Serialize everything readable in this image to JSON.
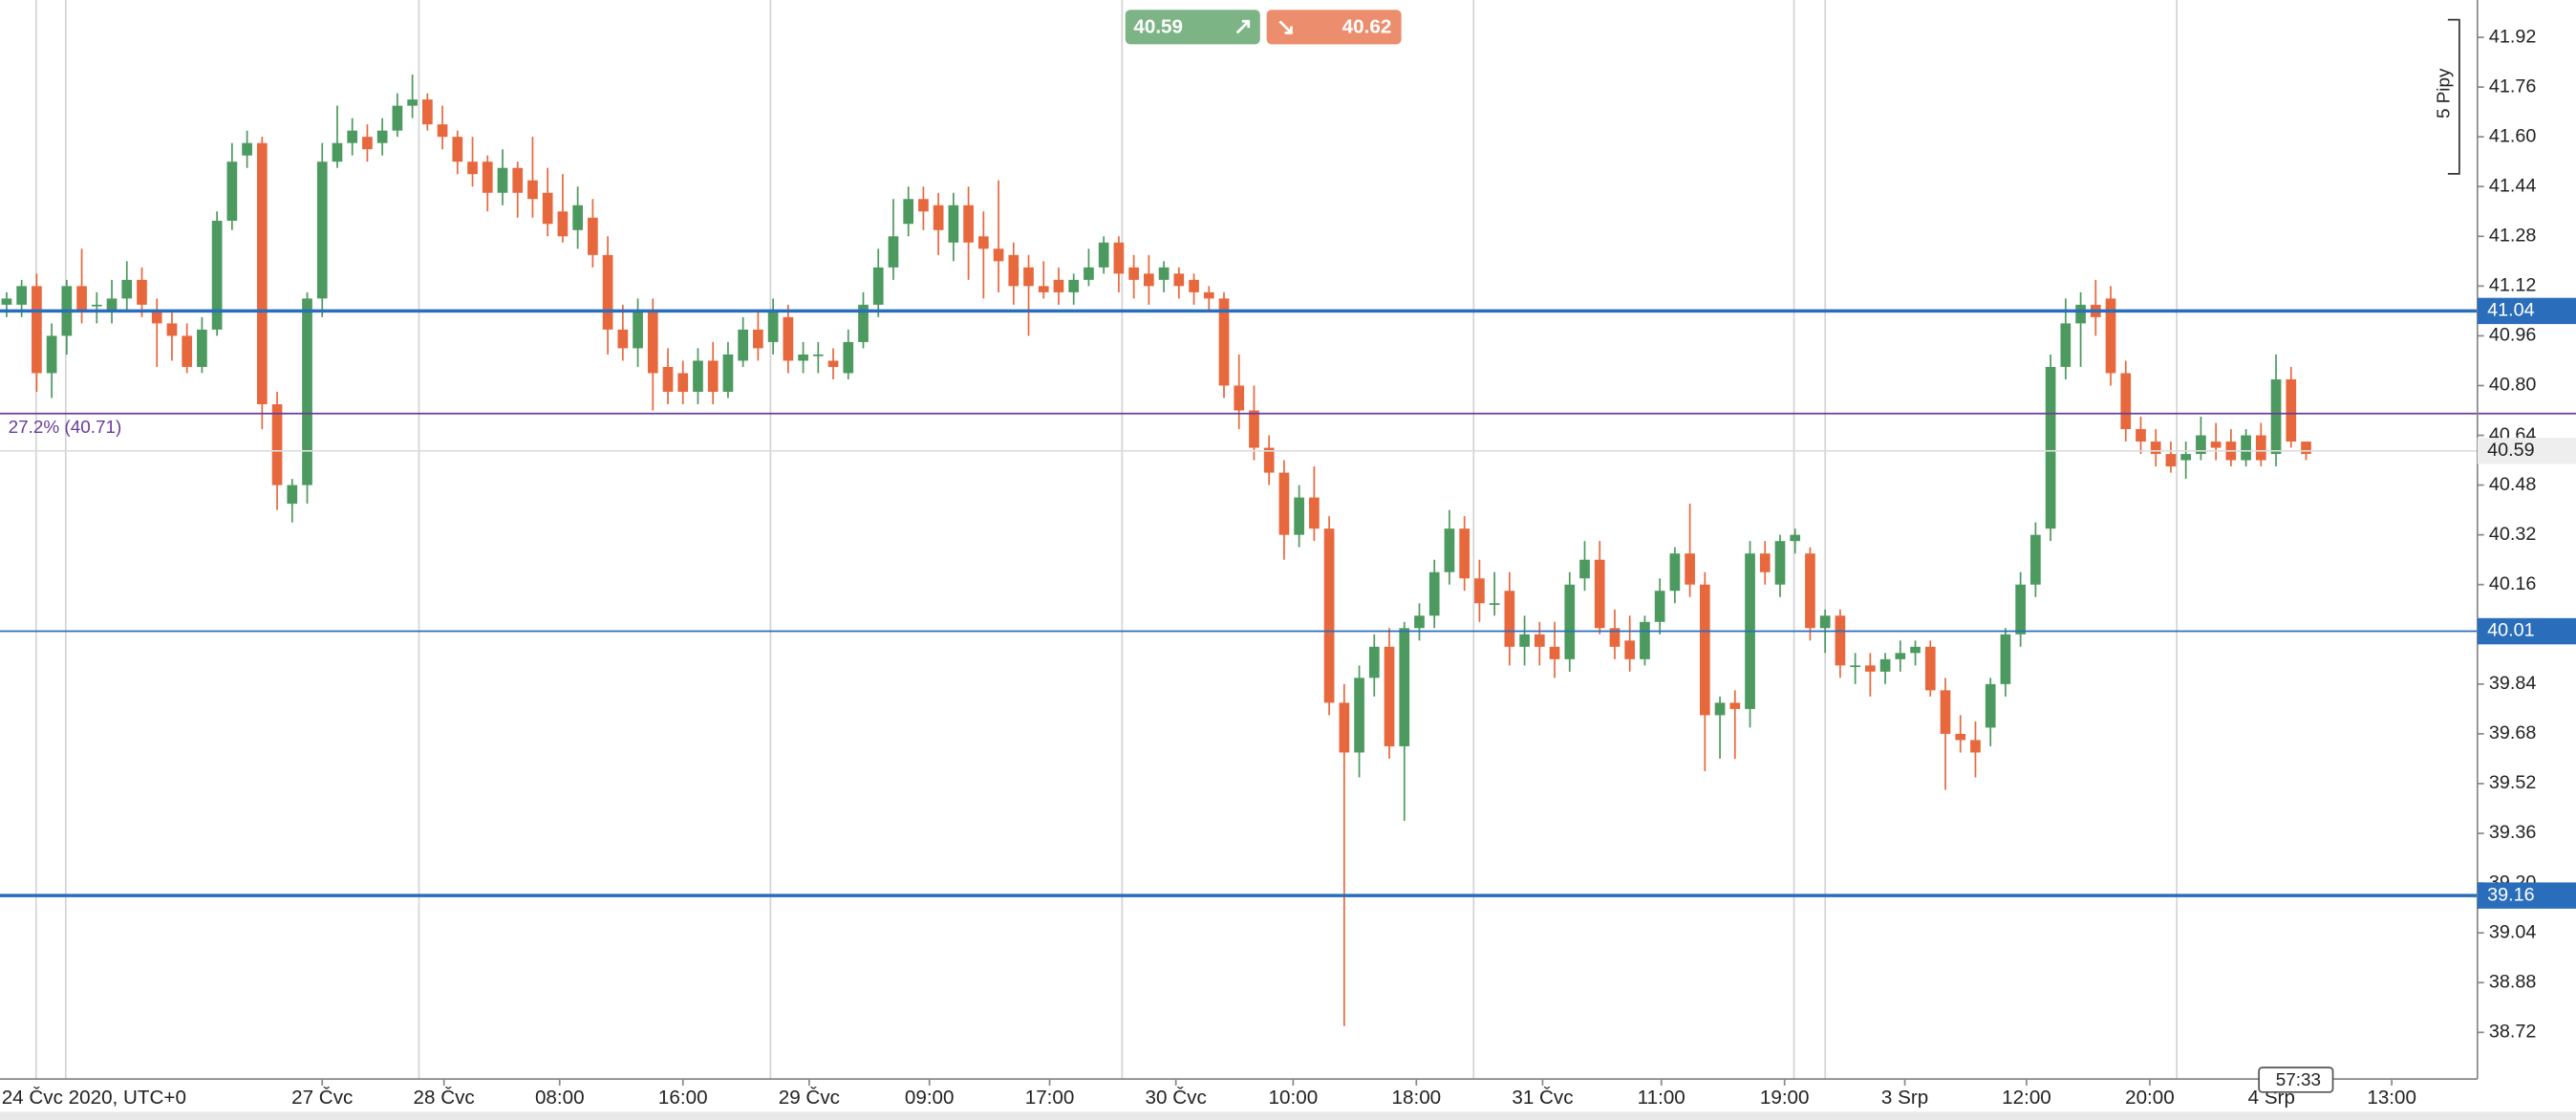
{
  "chart_data": {
    "type": "candlestick",
    "up_color": "#4c9a5f",
    "down_color": "#e8683e",
    "xlim": [
      -0.44,
      164.4
    ],
    "ylim": [
      38.57,
      42.04
    ],
    "axis_start_label": "24 Čvc 2020, UTC+0",
    "xticks": [
      {
        "value": 21.0,
        "label": "27 Čvc"
      },
      {
        "value": 29.1,
        "label": "28 Čvc"
      },
      {
        "value": 36.8,
        "label": "08:00"
      },
      {
        "value": 45.0,
        "label": "16:00"
      },
      {
        "value": 53.4,
        "label": "29 Čvc"
      },
      {
        "value": 61.4,
        "label": "09:00"
      },
      {
        "value": 69.4,
        "label": "17:00"
      },
      {
        "value": 77.8,
        "label": "30 Čvc"
      },
      {
        "value": 85.6,
        "label": "10:00"
      },
      {
        "value": 93.8,
        "label": "18:00"
      },
      {
        "value": 102.2,
        "label": "31 Čvc"
      },
      {
        "value": 110.1,
        "label": "11:00"
      },
      {
        "value": 118.3,
        "label": "19:00"
      },
      {
        "value": 126.3,
        "label": "3 Srp"
      },
      {
        "value": 134.4,
        "label": "12:00"
      },
      {
        "value": 142.6,
        "label": "20:00"
      },
      {
        "value": 150.7,
        "label": "4 Srp"
      },
      {
        "value": 158.7,
        "label": "13:00"
      }
    ],
    "yticks": [
      41.92,
      41.76,
      {
        "value": 41.6,
        "label": "41.60"
      },
      41.44,
      41.28,
      41.12,
      40.96,
      {
        "value": 40.8,
        "label": "40.80"
      },
      40.64,
      40.48,
      40.32,
      40.16,
      {
        "value": 40.0,
        "label": "40.00"
      },
      39.84,
      39.68,
      39.52,
      39.36,
      {
        "value": 39.2,
        "label": "39.20"
      },
      39.04,
      38.88,
      38.72
    ],
    "levels": [
      {
        "value": 41.04,
        "color": "#2a6ebb",
        "width": 2
      },
      {
        "value": 40.01,
        "color": "#2a6ebb",
        "width": 1
      },
      {
        "value": 39.16,
        "color": "#2a6ebb",
        "width": 2
      }
    ],
    "fib_label": "27.2% (40.71)",
    "fib_value": 40.71,
    "fib_color": "#6a3d9a",
    "last_price": 40.59,
    "ohlc": [
      [
        41.06,
        41.1,
        41.02,
        41.08
      ],
      [
        41.06,
        41.14,
        41.02,
        41.12
      ],
      [
        41.12,
        41.16,
        40.78,
        40.84
      ],
      [
        40.84,
        41.0,
        40.76,
        40.96
      ],
      [
        40.96,
        41.14,
        40.9,
        41.12
      ],
      [
        41.12,
        41.24,
        41.0,
        41.04
      ],
      [
        41.06,
        41.1,
        41.0,
        41.06
      ],
      [
        41.04,
        41.14,
        41.0,
        41.08
      ],
      [
        41.08,
        41.2,
        41.04,
        41.14
      ],
      [
        41.14,
        41.18,
        41.02,
        41.06
      ],
      [
        41.04,
        41.08,
        40.86,
        41.0
      ],
      [
        41.0,
        41.04,
        40.88,
        40.96
      ],
      [
        40.96,
        41.0,
        40.84,
        40.86
      ],
      [
        40.86,
        41.02,
        40.84,
        40.98
      ],
      [
        40.98,
        41.36,
        40.96,
        41.33
      ],
      [
        41.33,
        41.58,
        41.3,
        41.52
      ],
      [
        41.54,
        41.62,
        41.5,
        41.58
      ],
      [
        41.58,
        41.6,
        40.66,
        40.74
      ],
      [
        40.74,
        40.78,
        40.4,
        40.48
      ],
      [
        40.42,
        40.5,
        40.36,
        40.48
      ],
      [
        40.48,
        41.1,
        40.42,
        41.08
      ],
      [
        41.08,
        41.58,
        41.02,
        41.52
      ],
      [
        41.52,
        41.7,
        41.5,
        41.58
      ],
      [
        41.58,
        41.66,
        41.54,
        41.62
      ],
      [
        41.6,
        41.64,
        41.52,
        41.56
      ],
      [
        41.58,
        41.66,
        41.54,
        41.62
      ],
      [
        41.62,
        41.74,
        41.6,
        41.7
      ],
      [
        41.7,
        41.8,
        41.66,
        41.72
      ],
      [
        41.72,
        41.74,
        41.62,
        41.64
      ],
      [
        41.64,
        41.7,
        41.56,
        41.6
      ],
      [
        41.6,
        41.62,
        41.48,
        41.52
      ],
      [
        41.52,
        41.6,
        41.44,
        41.48
      ],
      [
        41.52,
        41.54,
        41.36,
        41.42
      ],
      [
        41.42,
        41.56,
        41.38,
        41.5
      ],
      [
        41.5,
        41.52,
        41.34,
        41.42
      ],
      [
        41.46,
        41.6,
        41.34,
        41.4
      ],
      [
        41.42,
        41.5,
        41.28,
        41.32
      ],
      [
        41.36,
        41.48,
        41.26,
        41.28
      ],
      [
        41.3,
        41.44,
        41.24,
        41.38
      ],
      [
        41.34,
        41.4,
        41.18,
        41.22
      ],
      [
        41.22,
        41.28,
        40.9,
        40.98
      ],
      [
        40.98,
        41.06,
        40.88,
        40.92
      ],
      [
        40.92,
        41.08,
        40.86,
        41.04
      ],
      [
        41.04,
        41.08,
        40.72,
        40.84
      ],
      [
        40.86,
        40.92,
        40.74,
        40.78
      ],
      [
        40.84,
        40.88,
        40.74,
        40.78
      ],
      [
        40.78,
        40.92,
        40.74,
        40.88
      ],
      [
        40.88,
        40.94,
        40.74,
        40.78
      ],
      [
        40.78,
        40.94,
        40.76,
        40.9
      ],
      [
        40.88,
        41.02,
        40.86,
        40.98
      ],
      [
        40.98,
        41.04,
        40.88,
        40.92
      ],
      [
        40.94,
        41.08,
        40.9,
        41.04
      ],
      [
        41.02,
        41.06,
        40.84,
        40.88
      ],
      [
        40.88,
        40.94,
        40.84,
        40.9
      ],
      [
        40.9,
        40.94,
        40.84,
        40.9
      ],
      [
        40.88,
        40.92,
        40.82,
        40.86
      ],
      [
        40.84,
        40.98,
        40.82,
        40.94
      ],
      [
        40.94,
        41.1,
        40.92,
        41.06
      ],
      [
        41.06,
        41.24,
        41.02,
        41.18
      ],
      [
        41.18,
        41.4,
        41.14,
        41.28
      ],
      [
        41.32,
        41.44,
        41.28,
        41.4
      ],
      [
        41.4,
        41.44,
        41.3,
        41.36
      ],
      [
        41.38,
        41.42,
        41.22,
        41.3
      ],
      [
        41.26,
        41.42,
        41.2,
        41.38
      ],
      [
        41.38,
        41.44,
        41.14,
        41.26
      ],
      [
        41.28,
        41.36,
        41.08,
        41.24
      ],
      [
        41.24,
        41.46,
        41.1,
        41.2
      ],
      [
        41.22,
        41.26,
        41.06,
        41.12
      ],
      [
        41.18,
        41.22,
        40.96,
        41.12
      ],
      [
        41.12,
        41.2,
        41.08,
        41.1
      ],
      [
        41.14,
        41.18,
        41.06,
        41.1
      ],
      [
        41.1,
        41.16,
        41.06,
        41.14
      ],
      [
        41.14,
        41.24,
        41.12,
        41.18
      ],
      [
        41.18,
        41.28,
        41.16,
        41.26
      ],
      [
        41.26,
        41.28,
        41.1,
        41.16
      ],
      [
        41.18,
        41.22,
        41.08,
        41.14
      ],
      [
        41.16,
        41.22,
        41.06,
        41.12
      ],
      [
        41.14,
        41.2,
        41.1,
        41.18
      ],
      [
        41.16,
        41.18,
        41.08,
        41.12
      ],
      [
        41.14,
        41.16,
        41.06,
        41.1
      ],
      [
        41.1,
        41.12,
        41.04,
        41.08
      ],
      [
        41.08,
        41.1,
        40.76,
        40.8
      ],
      [
        40.8,
        40.9,
        40.66,
        40.72
      ],
      [
        40.72,
        40.8,
        40.56,
        40.6
      ],
      [
        40.6,
        40.64,
        40.48,
        40.52
      ],
      [
        40.52,
        40.56,
        40.24,
        40.32
      ],
      [
        40.32,
        40.48,
        40.28,
        40.44
      ],
      [
        40.44,
        40.54,
        40.3,
        40.34
      ],
      [
        40.34,
        40.38,
        39.74,
        39.78
      ],
      [
        39.78,
        39.84,
        38.74,
        39.62
      ],
      [
        39.62,
        39.9,
        39.54,
        39.86
      ],
      [
        39.86,
        40.0,
        39.8,
        39.96
      ],
      [
        39.96,
        40.02,
        39.6,
        39.64
      ],
      [
        39.64,
        40.04,
        39.4,
        40.02
      ],
      [
        40.02,
        40.1,
        39.98,
        40.06
      ],
      [
        40.06,
        40.24,
        40.02,
        40.2
      ],
      [
        40.2,
        40.4,
        40.16,
        40.34
      ],
      [
        40.34,
        40.38,
        40.14,
        40.18
      ],
      [
        40.18,
        40.24,
        40.04,
        40.1
      ],
      [
        40.1,
        40.2,
        40.06,
        40.1
      ],
      [
        40.14,
        40.2,
        39.9,
        39.96
      ],
      [
        39.96,
        40.06,
        39.9,
        40.0
      ],
      [
        40.0,
        40.04,
        39.9,
        39.96
      ],
      [
        39.96,
        40.04,
        39.86,
        39.92
      ],
      [
        39.92,
        40.2,
        39.88,
        40.16
      ],
      [
        40.18,
        40.3,
        40.14,
        40.24
      ],
      [
        40.24,
        40.3,
        40.0,
        40.02
      ],
      [
        40.02,
        40.08,
        39.92,
        39.96
      ],
      [
        39.98,
        40.06,
        39.88,
        39.92
      ],
      [
        39.92,
        40.06,
        39.9,
        40.04
      ],
      [
        40.04,
        40.18,
        40.0,
        40.14
      ],
      [
        40.14,
        40.28,
        40.1,
        40.26
      ],
      [
        40.26,
        40.42,
        40.12,
        40.16
      ],
      [
        40.16,
        40.2,
        39.56,
        39.74
      ],
      [
        39.74,
        39.8,
        39.6,
        39.78
      ],
      [
        39.78,
        39.82,
        39.6,
        39.76
      ],
      [
        39.76,
        40.3,
        39.7,
        40.26
      ],
      [
        40.26,
        40.3,
        40.16,
        40.2
      ],
      [
        40.16,
        40.32,
        40.12,
        40.3
      ],
      [
        40.3,
        40.34,
        40.26,
        40.32
      ],
      [
        40.26,
        40.28,
        39.98,
        40.02
      ],
      [
        40.02,
        40.08,
        39.94,
        40.06
      ],
      [
        40.06,
        40.08,
        39.86,
        39.9
      ],
      [
        39.9,
        39.94,
        39.84,
        39.9
      ],
      [
        39.9,
        39.94,
        39.8,
        39.88
      ],
      [
        39.88,
        39.94,
        39.84,
        39.92
      ],
      [
        39.92,
        39.98,
        39.88,
        39.94
      ],
      [
        39.94,
        39.98,
        39.9,
        39.96
      ],
      [
        39.96,
        39.98,
        39.8,
        39.82
      ],
      [
        39.82,
        39.86,
        39.5,
        39.68
      ],
      [
        39.68,
        39.74,
        39.62,
        39.66
      ],
      [
        39.66,
        39.72,
        39.54,
        39.62
      ],
      [
        39.7,
        39.86,
        39.64,
        39.84
      ],
      [
        39.84,
        40.02,
        39.8,
        40.0
      ],
      [
        40.0,
        40.2,
        39.96,
        40.16
      ],
      [
        40.16,
        40.36,
        40.12,
        40.32
      ],
      [
        40.34,
        40.9,
        40.3,
        40.86
      ],
      [
        40.86,
        41.08,
        40.82,
        41.0
      ],
      [
        41.0,
        41.1,
        40.86,
        41.06
      ],
      [
        41.06,
        41.14,
        40.96,
        41.02
      ],
      [
        41.08,
        41.12,
        40.8,
        40.84
      ],
      [
        40.84,
        40.88,
        40.62,
        40.66
      ],
      [
        40.66,
        40.7,
        40.58,
        40.62
      ],
      [
        40.62,
        40.66,
        40.54,
        40.58
      ],
      [
        40.58,
        40.62,
        40.52,
        40.54
      ],
      [
        40.56,
        40.62,
        40.5,
        40.58
      ],
      [
        40.58,
        40.7,
        40.56,
        40.64
      ],
      [
        40.62,
        40.68,
        40.56,
        40.6
      ],
      [
        40.62,
        40.66,
        40.54,
        40.56
      ],
      [
        40.56,
        40.66,
        40.54,
        40.64
      ],
      [
        40.64,
        40.68,
        40.54,
        40.56
      ],
      [
        40.58,
        40.9,
        40.54,
        40.82
      ],
      [
        40.82,
        40.86,
        40.6,
        40.62
      ],
      [
        40.62,
        40.62,
        40.56,
        40.58
      ]
    ]
  },
  "ticket": {
    "buy": 40.59,
    "sell": 40.62
  },
  "pip_scale": "5 Pipy",
  "countdown": "57:33"
}
